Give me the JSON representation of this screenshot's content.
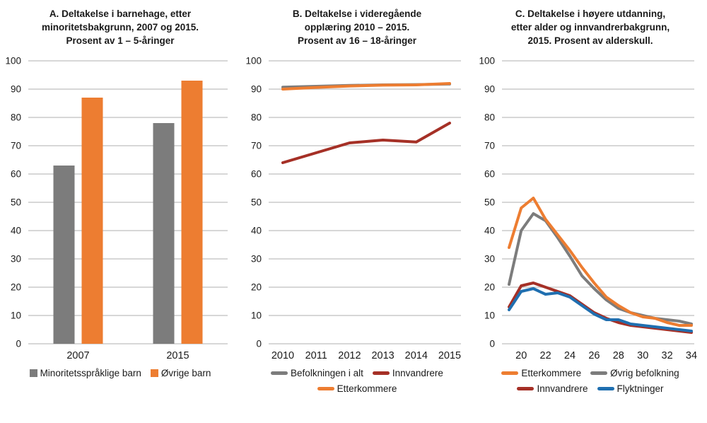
{
  "colors": {
    "gray": "#7C7C7C",
    "orange": "#ED7D31",
    "dark_red": "#A53026",
    "blue": "#1F6FB0",
    "gridline": "#BFBFBF",
    "text": "#1A1A1A"
  },
  "chart_data": [
    {
      "panel": "A",
      "type": "bar",
      "title": "A. Deltakelse i barnehage, etter\nminoritetsbakgrunn, 2007 og 2015.\nProsent av 1 – 5-åringer",
      "categories": [
        "2007",
        "2015"
      ],
      "series": [
        {
          "name": "Minoritetsspråklige barn",
          "color": "gray",
          "values": [
            63,
            78
          ]
        },
        {
          "name": "Øvrige barn",
          "color": "orange",
          "values": [
            87,
            93
          ]
        }
      ],
      "ylim": [
        0,
        100
      ],
      "ytick_step": 10,
      "grid": true,
      "legend_position": "bottom",
      "legend_marker": "square",
      "legend_rows": [
        [
          0,
          1
        ]
      ]
    },
    {
      "panel": "B",
      "type": "line",
      "title": "B. Deltakelse i videregående\nopplæring 2010 – 2015.\nProsent av 16 – 18-åringer",
      "x": [
        2010,
        2011,
        2012,
        2013,
        2014,
        2015
      ],
      "xticks": [
        2010,
        2011,
        2012,
        2013,
        2014,
        2015
      ],
      "series": [
        {
          "name": "Befolkningen i alt",
          "color": "gray",
          "values": [
            90.7,
            91.0,
            91.3,
            91.5,
            91.6,
            91.8
          ]
        },
        {
          "name": "Etterkommere",
          "color": "orange",
          "values": [
            90.0,
            90.6,
            91.1,
            91.4,
            91.5,
            92.0
          ]
        },
        {
          "name": "Innvandrere",
          "color": "dark_red",
          "values": [
            64,
            67.5,
            71,
            72,
            71.3,
            78
          ]
        }
      ],
      "ylim": [
        0,
        100
      ],
      "ytick_step": 10,
      "grid": true,
      "legend_position": "bottom",
      "legend_marker": "line",
      "legend_rows": [
        [
          0,
          2
        ],
        [
          1
        ]
      ],
      "xpad": [
        20,
        16
      ]
    },
    {
      "panel": "C",
      "type": "line",
      "title": "C. Deltakelse i høyere utdanning,\netter alder og innvandrerbakgrunn,\n2015. Prosent av alderskull.",
      "x": [
        19,
        20,
        21,
        22,
        23,
        24,
        25,
        26,
        27,
        28,
        29,
        30,
        31,
        32,
        33,
        34
      ],
      "xticks": [
        20,
        22,
        24,
        26,
        28,
        30,
        32,
        34
      ],
      "series": [
        {
          "name": "Øvrig befolkning",
          "color": "gray",
          "values": [
            21,
            40,
            46,
            43.5,
            37.5,
            31,
            24,
            19.5,
            15.5,
            12.5,
            11,
            10,
            9,
            8.5,
            8,
            7
          ]
        },
        {
          "name": "Etterkommere",
          "color": "orange",
          "values": [
            34,
            48,
            51.5,
            44,
            38.5,
            33,
            27,
            21.5,
            16.5,
            13.5,
            11,
            9.5,
            9,
            7.5,
            6.5,
            6.5
          ]
        },
        {
          "name": "Innvandrere",
          "color": "dark_red",
          "values": [
            13,
            20.5,
            21.5,
            20,
            18.5,
            17,
            14,
            11,
            9,
            7.5,
            6.5,
            6,
            5.5,
            5,
            4.5,
            4
          ]
        },
        {
          "name": "Flyktninger",
          "color": "blue",
          "values": [
            12,
            18.5,
            19.5,
            17.5,
            18,
            16.5,
            13.5,
            10.5,
            8.5,
            8.5,
            7,
            6.5,
            6,
            5.5,
            5,
            4.5
          ]
        }
      ],
      "ylim": [
        0,
        100
      ],
      "ytick_step": 10,
      "grid": true,
      "legend_position": "bottom",
      "legend_marker": "line",
      "legend_rows": [
        [
          1,
          0
        ],
        [
          2,
          3
        ]
      ],
      "xpad": [
        10,
        4
      ]
    }
  ]
}
